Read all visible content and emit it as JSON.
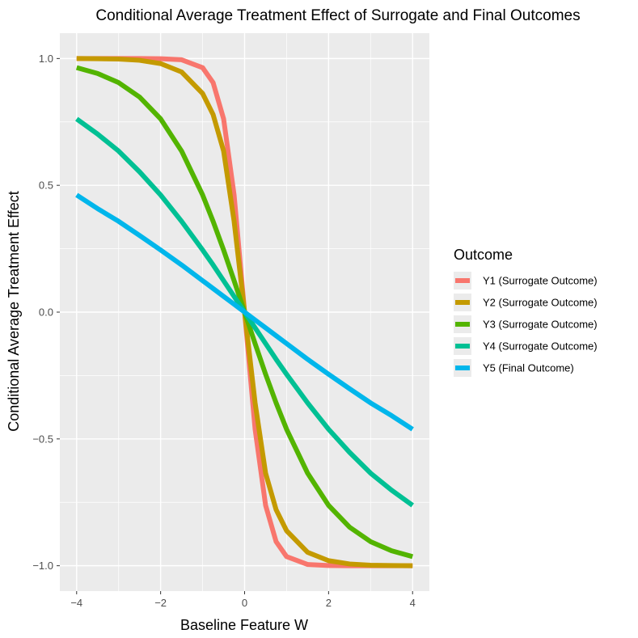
{
  "chart_data": {
    "type": "line",
    "title": "Conditional Average Treatment Effect of Surrogate and Final Outcomes",
    "xlabel": "Baseline Feature W",
    "ylabel": "Conditional Average Treatment Effect",
    "xlim": [
      -4.4,
      4.4
    ],
    "ylim": [
      -1.1,
      1.1
    ],
    "x_ticks": [
      -4,
      -2,
      0,
      2,
      4
    ],
    "x_tick_labels": [
      "−4",
      "−2",
      "0",
      "2",
      "4"
    ],
    "y_ticks": [
      1.0,
      0.5,
      0.0,
      -0.5,
      -1.0
    ],
    "y_tick_labels": [
      "1.0",
      "0.5",
      "0.0",
      "−0.5",
      "−1.0"
    ],
    "grid": true,
    "legend": {
      "title": "Outcome",
      "position": "right"
    },
    "x": [
      -4,
      -3.5,
      -3,
      -2.5,
      -2,
      -1.5,
      -1,
      -0.75,
      -0.5,
      -0.25,
      0,
      0.25,
      0.5,
      0.75,
      1,
      1.5,
      2,
      2.5,
      3,
      3.5,
      4
    ],
    "series": [
      {
        "name": "Y1 (Surrogate Outcome)",
        "color": "#F8766D",
        "values": [
          1.0,
          1.0,
          1.0,
          1.0,
          0.999,
          0.995,
          0.964,
          0.905,
          0.762,
          0.462,
          0.0,
          -0.462,
          -0.762,
          -0.905,
          -0.964,
          -0.995,
          -0.999,
          -1.0,
          -1.0,
          -1.0,
          -1.0
        ]
      },
      {
        "name": "Y2 (Surrogate Outcome)",
        "color": "#C49A00",
        "values": [
          1.0,
          0.999,
          0.998,
          0.993,
          0.98,
          0.947,
          0.862,
          0.779,
          0.635,
          0.358,
          0.0,
          -0.358,
          -0.635,
          -0.779,
          -0.862,
          -0.947,
          -0.98,
          -0.993,
          -0.998,
          -0.999,
          -1.0
        ]
      },
      {
        "name": "Y3 (Surrogate Outcome)",
        "color": "#53B400",
        "values": [
          0.964,
          0.941,
          0.905,
          0.848,
          0.762,
          0.635,
          0.462,
          0.358,
          0.245,
          0.124,
          0.0,
          -0.124,
          -0.245,
          -0.358,
          -0.462,
          -0.635,
          -0.762,
          -0.848,
          -0.905,
          -0.941,
          -0.964
        ]
      },
      {
        "name": "Y4 (Surrogate Outcome)",
        "color": "#00C094",
        "values": [
          0.762,
          0.702,
          0.635,
          0.553,
          0.462,
          0.358,
          0.245,
          0.186,
          0.124,
          0.062,
          0.0,
          -0.062,
          -0.124,
          -0.186,
          -0.245,
          -0.358,
          -0.462,
          -0.553,
          -0.635,
          -0.702,
          -0.762
        ]
      },
      {
        "name": "Y5 (Final Outcome)",
        "color": "#00B6EB",
        "values": [
          0.462,
          0.408,
          0.358,
          0.302,
          0.245,
          0.186,
          0.124,
          0.093,
          0.062,
          0.031,
          0.0,
          -0.031,
          -0.062,
          -0.093,
          -0.124,
          -0.186,
          -0.245,
          -0.302,
          -0.358,
          -0.408,
          -0.462
        ]
      }
    ]
  },
  "panel_background": "#EBEBEB",
  "grid_color": "#FFFFFF"
}
